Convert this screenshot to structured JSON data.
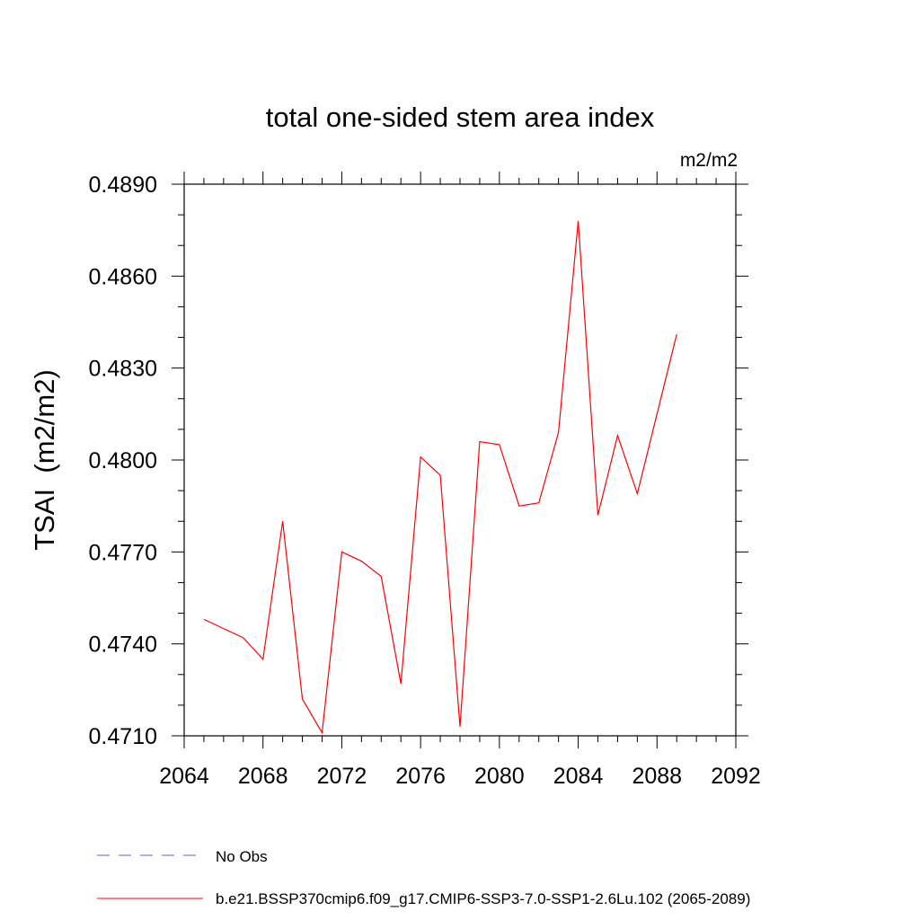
{
  "chart_data": {
    "type": "line",
    "title": "total one-sided stem area index",
    "units_label": "m2/m2",
    "ylabel": "TSAI  (m2/m2)",
    "xlabel": "",
    "xlim": [
      2064,
      2092
    ],
    "ylim": [
      0.471,
      0.489
    ],
    "x_ticks": [
      2064,
      2068,
      2072,
      2076,
      2080,
      2084,
      2088,
      2092
    ],
    "x_tick_labels": [
      "2064",
      "2068",
      "2072",
      "2076",
      "2080",
      "2084",
      "2088",
      "2092"
    ],
    "y_ticks": [
      0.471,
      0.474,
      0.477,
      0.48,
      0.483,
      0.486,
      0.489
    ],
    "y_tick_labels": [
      "0.4710",
      "0.4740",
      "0.4770",
      "0.4800",
      "0.4830",
      "0.4860",
      "0.4890"
    ],
    "x_minor_step": 1,
    "y_minor_step": 0.001,
    "grid": false,
    "legend_position": "bottom",
    "legend": [
      {
        "label": "No Obs",
        "color": "#6a5acd",
        "dash": true
      },
      {
        "label": "b.e21.BSSP370cmip6.f09_g17.CMIP6-SSP3-7.0-SSP1-2.6Lu.102 (2065-2089)",
        "color": "#ff0000",
        "dash": false
      }
    ],
    "series": [
      {
        "name": "b.e21.BSSP370cmip6.f09_g17.CMIP6-SSP3-7.0-SSP1-2.6Lu.102 (2065-2089)",
        "color": "#ff0000",
        "x": [
          2065,
          2066,
          2067,
          2068,
          2069,
          2070,
          2071,
          2072,
          2073,
          2074,
          2075,
          2076,
          2077,
          2078,
          2079,
          2080,
          2081,
          2082,
          2083,
          2084,
          2085,
          2086,
          2087,
          2088,
          2089
        ],
        "y": [
          0.4748,
          0.4745,
          0.4742,
          0.4735,
          0.478,
          0.4722,
          0.4711,
          0.477,
          0.4767,
          0.4762,
          0.4727,
          0.4801,
          0.4795,
          0.4713,
          0.4806,
          0.4805,
          0.4785,
          0.4786,
          0.4809,
          0.4878,
          0.4782,
          0.4808,
          0.4789,
          0.4815,
          0.4841
        ]
      }
    ]
  }
}
